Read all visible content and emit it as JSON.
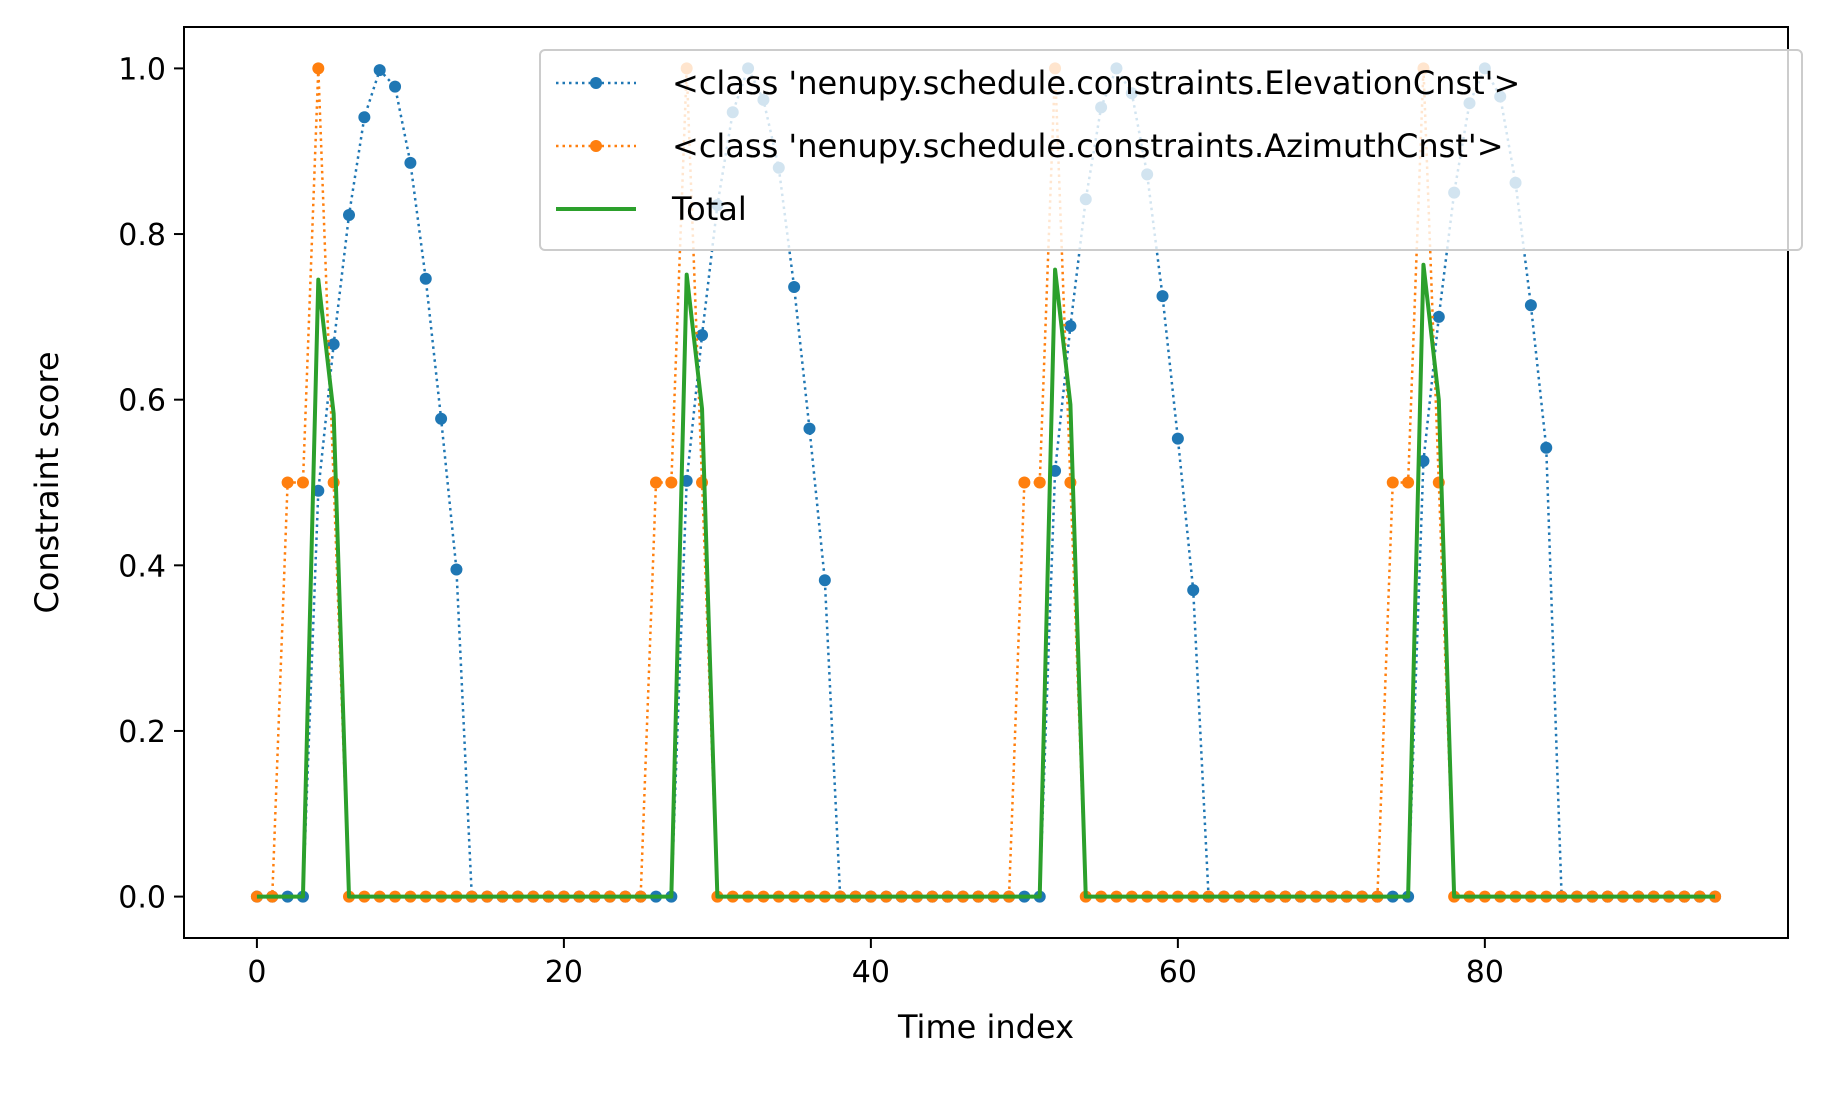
{
  "chart_data": {
    "type": "line",
    "xlabel": "Time index",
    "ylabel": "Constraint score",
    "xlim": [
      -4.75,
      99.75
    ],
    "ylim": [
      -0.05,
      1.05
    ],
    "xticks": [
      0,
      20,
      40,
      60,
      80
    ],
    "yticks": [
      0.0,
      0.2,
      0.4,
      0.6,
      0.8,
      1.0
    ],
    "xtick_labels": [
      "0",
      "20",
      "40",
      "60",
      "80"
    ],
    "ytick_labels": [
      "0.0",
      "0.2",
      "0.4",
      "0.6",
      "0.8",
      "1.0"
    ],
    "grid": false,
    "legend_position": "top-right",
    "x": [
      0,
      1,
      2,
      3,
      4,
      5,
      6,
      7,
      8,
      9,
      10,
      11,
      12,
      13,
      14,
      15,
      16,
      17,
      18,
      19,
      20,
      21,
      22,
      23,
      24,
      25,
      26,
      27,
      28,
      29,
      30,
      31,
      32,
      33,
      34,
      35,
      36,
      37,
      38,
      39,
      40,
      41,
      42,
      43,
      44,
      45,
      46,
      47,
      48,
      49,
      50,
      51,
      52,
      53,
      54,
      55,
      56,
      57,
      58,
      59,
      60,
      61,
      62,
      63,
      64,
      65,
      66,
      67,
      68,
      69,
      70,
      71,
      72,
      73,
      74,
      75,
      76,
      77,
      78,
      79,
      80,
      81,
      82,
      83,
      84,
      85,
      86,
      87,
      88,
      89,
      90,
      91,
      92,
      93,
      94,
      95
    ],
    "series": [
      {
        "name": "<class 'nenupy.schedule.constraints.ElevationCnst'>",
        "color": "#1f77b4",
        "style": "dotted-markers",
        "values": [
          0,
          0,
          0,
          0,
          0.49,
          0.667,
          0.823,
          0.941,
          0.998,
          0.978,
          0.886,
          0.746,
          0.577,
          0.395,
          0,
          0,
          0,
          0,
          0,
          0,
          0,
          0,
          0,
          0,
          0,
          0,
          0,
          0,
          0.502,
          0.678,
          0.835,
          0.947,
          1.0,
          0.962,
          0.88,
          0.736,
          0.565,
          0.382,
          0,
          0,
          0,
          0,
          0,
          0,
          0,
          0,
          0,
          0,
          0,
          0,
          0,
          0,
          0.514,
          0.689,
          0.842,
          0.953,
          1.0,
          0.97,
          0.872,
          0.725,
          0.553,
          0.37,
          0,
          0,
          0,
          0,
          0,
          0,
          0,
          0,
          0,
          0,
          0,
          0,
          0,
          0,
          0.526,
          0.7,
          0.85,
          0.958,
          1.0,
          0.966,
          0.862,
          0.714,
          0.542,
          0,
          0,
          0,
          0,
          0,
          0,
          0,
          0,
          0,
          0,
          0
        ]
      },
      {
        "name": "<class 'nenupy.schedule.constraints.AzimuthCnst'>",
        "color": "#ff7f0e",
        "style": "dotted-markers",
        "values": [
          0,
          0,
          0.5,
          0.5,
          1.0,
          0.5,
          0,
          0,
          0,
          0,
          0,
          0,
          0,
          0,
          0,
          0,
          0,
          0,
          0,
          0,
          0,
          0,
          0,
          0,
          0,
          0,
          0.5,
          0.5,
          1.0,
          0.5,
          0,
          0,
          0,
          0,
          0,
          0,
          0,
          0,
          0,
          0,
          0,
          0,
          0,
          0,
          0,
          0,
          0,
          0,
          0,
          0,
          0.5,
          0.5,
          1.0,
          0.5,
          0,
          0,
          0,
          0,
          0,
          0,
          0,
          0,
          0,
          0,
          0,
          0,
          0,
          0,
          0,
          0,
          0,
          0,
          0,
          0,
          0.5,
          0.5,
          1.0,
          0.5,
          0,
          0,
          0,
          0,
          0,
          0,
          0,
          0,
          0,
          0,
          0,
          0,
          0,
          0,
          0,
          0,
          0,
          0
        ]
      },
      {
        "name": "Total",
        "color": "#2ca02c",
        "style": "solid",
        "values": [
          0,
          0,
          0,
          0,
          0.745,
          0.583,
          0,
          0,
          0,
          0,
          0,
          0,
          0,
          0,
          0,
          0,
          0,
          0,
          0,
          0,
          0,
          0,
          0,
          0,
          0,
          0,
          0,
          0,
          0.751,
          0.589,
          0,
          0,
          0,
          0,
          0,
          0,
          0,
          0,
          0,
          0,
          0,
          0,
          0,
          0,
          0,
          0,
          0,
          0,
          0,
          0,
          0,
          0,
          0.757,
          0.594,
          0,
          0,
          0,
          0,
          0,
          0,
          0,
          0,
          0,
          0,
          0,
          0,
          0,
          0,
          0,
          0,
          0,
          0,
          0,
          0,
          0,
          0,
          0.763,
          0.6,
          0,
          0,
          0,
          0,
          0,
          0,
          0,
          0,
          0,
          0,
          0,
          0,
          0,
          0,
          0,
          0,
          0,
          0
        ]
      }
    ]
  }
}
